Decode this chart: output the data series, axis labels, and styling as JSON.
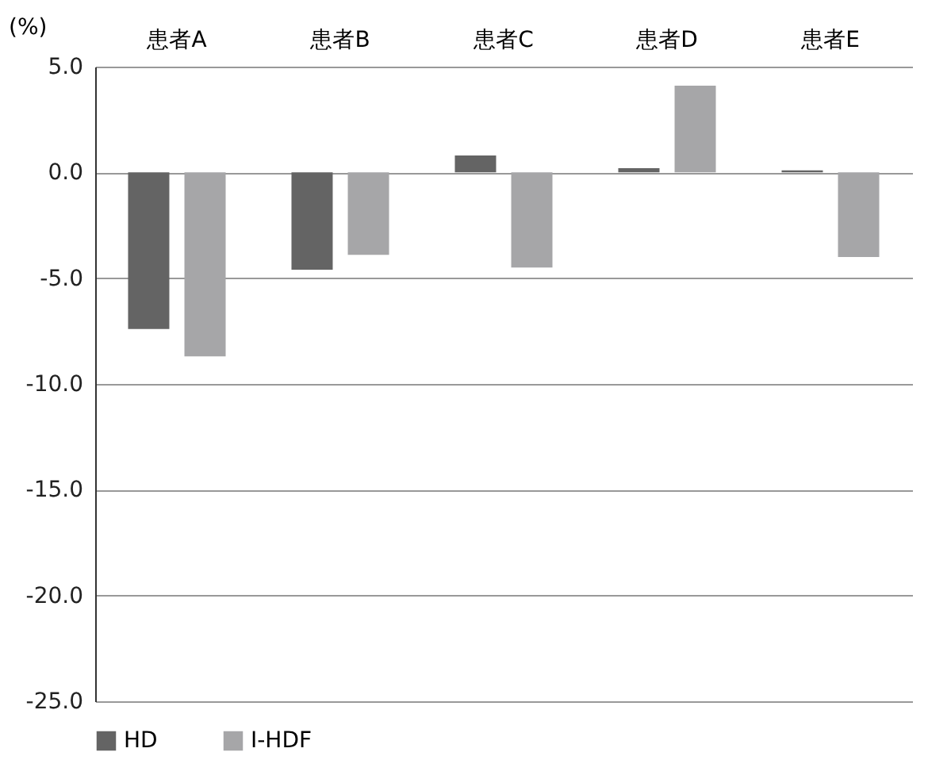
{
  "chart_data": {
    "type": "bar",
    "ylabel": "(%)",
    "categories": [
      "患者A",
      "患者B",
      "患者C",
      "患者D",
      "患者E"
    ],
    "series": [
      {
        "name": "HD",
        "color": "#646464",
        "values": [
          -7.4,
          -4.6,
          0.8,
          0.2,
          0.1
        ]
      },
      {
        "name": "I-HDF",
        "color": "#a6a6a8",
        "values": [
          -8.7,
          -3.9,
          -4.5,
          4.1,
          -4.0
        ]
      }
    ],
    "ylim": [
      -25.0,
      5.0
    ],
    "yticks": [
      {
        "value": -25,
        "label": "-25.0"
      },
      {
        "value": -20,
        "label": "-20.0"
      },
      {
        "value": -15,
        "label": "-15.0"
      },
      {
        "value": -10,
        "label": "-10.0"
      },
      {
        "value": -5,
        "label": "-5.0"
      },
      {
        "value": 0,
        "label": "0.0"
      },
      {
        "value": 5,
        "label": "5.0"
      }
    ],
    "grid": "y",
    "legend": "bottom"
  }
}
